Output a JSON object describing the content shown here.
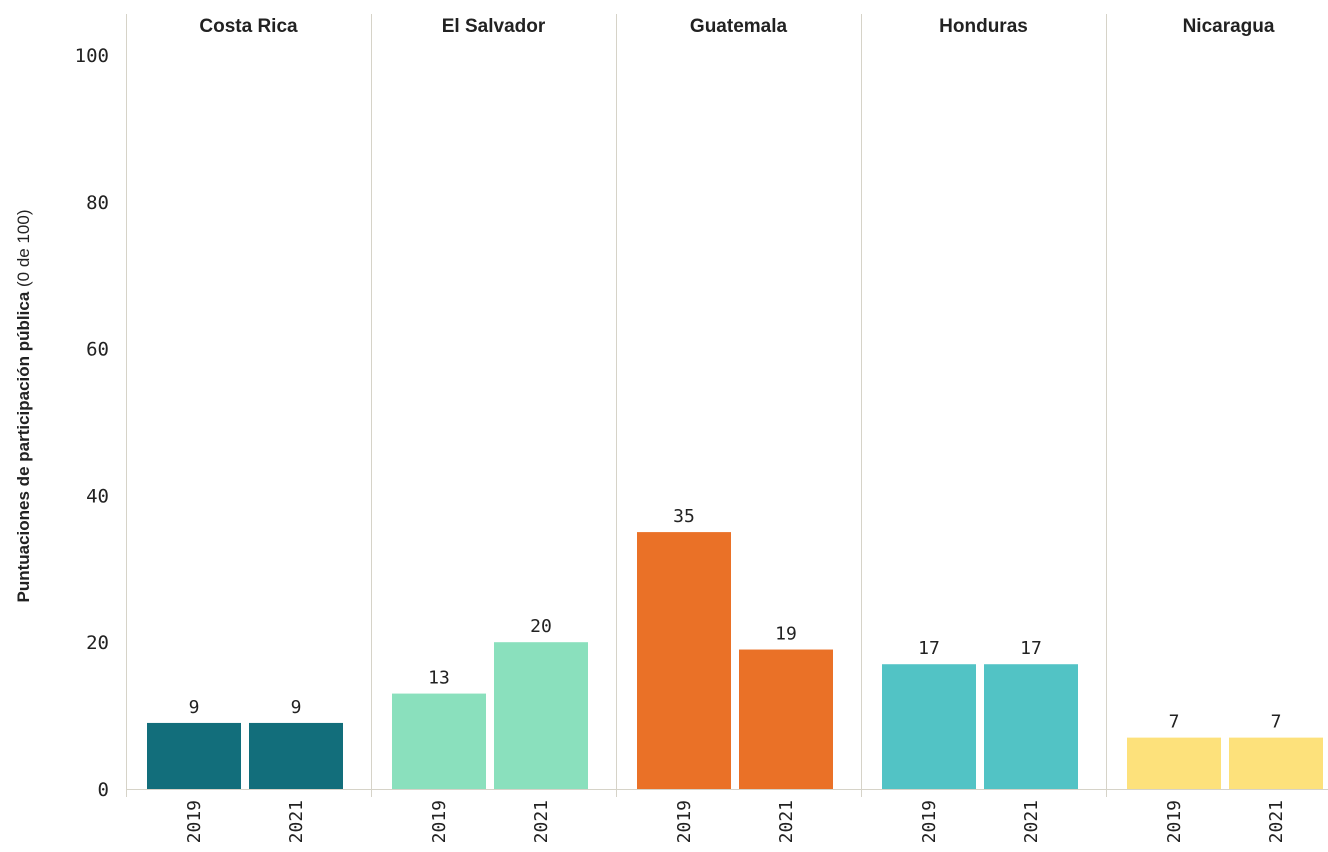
{
  "chart_data": {
    "type": "bar",
    "ylabel": {
      "main": "Puntuaciones de participación pública",
      "suffix": " (0 de 100)"
    },
    "ylim": [
      0,
      100
    ],
    "yticks": [
      "0",
      "20",
      "40",
      "60",
      "80",
      "100"
    ],
    "grid": false,
    "panels": [
      {
        "name": "Costa Rica",
        "color": "#126e7b",
        "categories": [
          "2019",
          "2021"
        ],
        "values": [
          9,
          9
        ]
      },
      {
        "name": "El Salvador",
        "color": "#8ae0bd",
        "categories": [
          "2019",
          "2021"
        ],
        "values": [
          13,
          20
        ]
      },
      {
        "name": "Guatemala",
        "color": "#ea7127",
        "categories": [
          "2019",
          "2021"
        ],
        "values": [
          35,
          19
        ]
      },
      {
        "name": "Honduras",
        "color": "#52c3c5",
        "categories": [
          "2019",
          "2021"
        ],
        "values": [
          17,
          17
        ]
      },
      {
        "name": "Nicaragua",
        "color": "#fde17b",
        "categories": [
          "2019",
          "2021"
        ],
        "values": [
          7,
          7
        ]
      }
    ]
  }
}
